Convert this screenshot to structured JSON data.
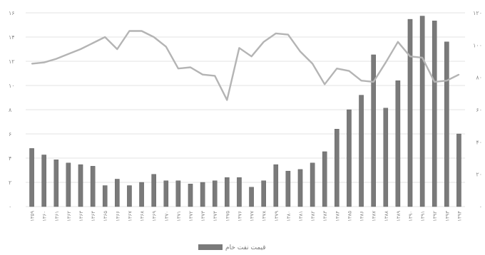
{
  "chart_data": {
    "type": "bar",
    "categories": [
      "۱۳۵۹",
      "۱۳۶۰",
      "۱۳۶۱",
      "۱۳۶۲",
      "۱۳۶۳",
      "۱۳۶۴",
      "۱۳۶۵",
      "۱۳۶۶",
      "۱۳۶۷",
      "۱۳۶۸",
      "۱۳۶۹",
      "۱۳۷۰",
      "۱۳۷۱",
      "۱۳۷۲",
      "۱۳۷۳",
      "۱۳۷۴",
      "۱۳۷۵",
      "۱۳۷۶",
      "۱۳۷۷",
      "۱۳۷۸",
      "۱۳۷۹",
      "۱۳۸۰",
      "۱۳۸۱",
      "۱۳۸۲",
      "۱۳۸۳",
      "۱۳۸۴",
      "۱۳۸۵",
      "۱۳۸۶",
      "۱۳۸۷",
      "۱۳۸۸",
      "۱۳۸۹",
      "۱۳۹۰",
      "۱۳۹۱",
      "۱۳۹۲",
      "۱۳۹۳",
      "۱۳۹۴"
    ],
    "series": [
      {
        "name": "قیمت نفت خام",
        "kind": "bar",
        "axis": "right",
        "color": "#7a7a7a",
        "values": [
          36,
          32,
          29,
          27,
          26,
          25,
          13,
          17,
          13,
          15,
          20,
          16,
          16,
          14,
          15,
          16,
          18,
          18,
          12,
          16,
          26,
          22,
          23,
          27,
          34,
          48,
          60,
          69,
          94,
          61,
          78,
          116,
          118,
          115,
          102,
          45
        ]
      },
      {
        "kind": "line",
        "axis": "left",
        "color": "#b4b4b4",
        "values": [
          11.8,
          11.9,
          12.2,
          12.6,
          13.0,
          13.5,
          14.0,
          13.0,
          14.5,
          14.5,
          14.0,
          13.2,
          11.4,
          11.5,
          10.9,
          10.8,
          8.8,
          13.1,
          12.4,
          13.6,
          14.3,
          14.2,
          12.8,
          11.8,
          10.1,
          11.4,
          11.2,
          10.4,
          10.3,
          11.9,
          13.6,
          12.4,
          12.3,
          10.3,
          10.4,
          10.9
        ]
      }
    ],
    "left_axis": {
      "ticks": [
        "۰",
        "۲",
        "۴",
        "۶",
        "۸",
        "۱۰",
        "۱۲",
        "۱۴",
        "۱۶"
      ],
      "min": 0,
      "max": 16,
      "step": 2
    },
    "right_axis": {
      "ticks": [
        "۰",
        "۲۰",
        "۴۰",
        "۶۰",
        "۸۰",
        "۱۰۰",
        "۱۲۰"
      ],
      "min": 0,
      "max": 120,
      "step": 20
    },
    "grid": true,
    "legend_position": "bottom-center"
  }
}
